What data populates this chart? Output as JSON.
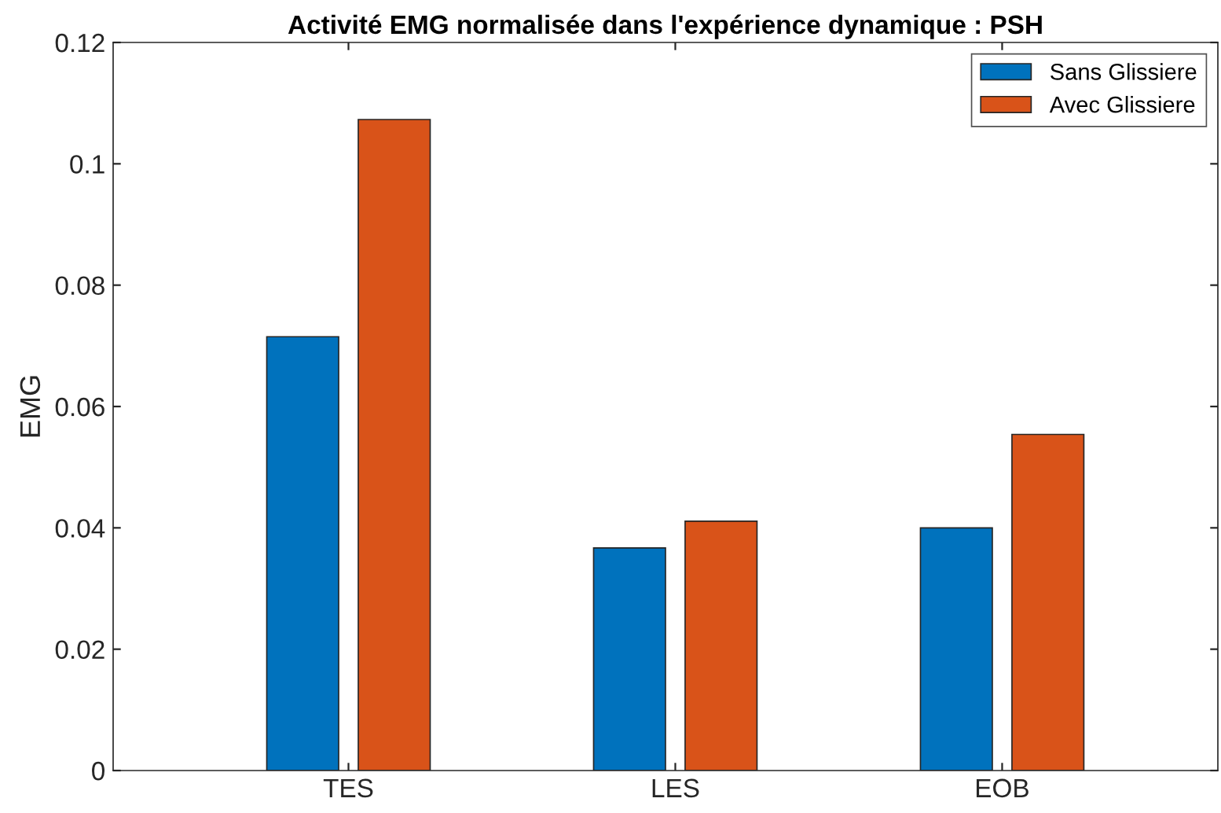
{
  "chart_data": {
    "type": "bar",
    "title": "Activité EMG normalisée dans l'expérience dynamique : PSH",
    "ylabel": "EMG",
    "categories": [
      "TES",
      "LES",
      "EOB"
    ],
    "series": [
      {
        "name": "Sans Glissiere",
        "color": "#0072bd",
        "values": [
          0.0715,
          0.0367,
          0.04
        ]
      },
      {
        "name": "Avec Glissiere",
        "color": "#d95319",
        "values": [
          0.1073,
          0.0411,
          0.0554
        ]
      }
    ],
    "ylim": [
      0,
      0.12
    ],
    "yticks": [
      0,
      0.02,
      0.04,
      0.06,
      0.08,
      {
        "value": 0.1,
        "label": "0.1"
      },
      0.12
    ],
    "grid": false,
    "legend": "top right"
  }
}
